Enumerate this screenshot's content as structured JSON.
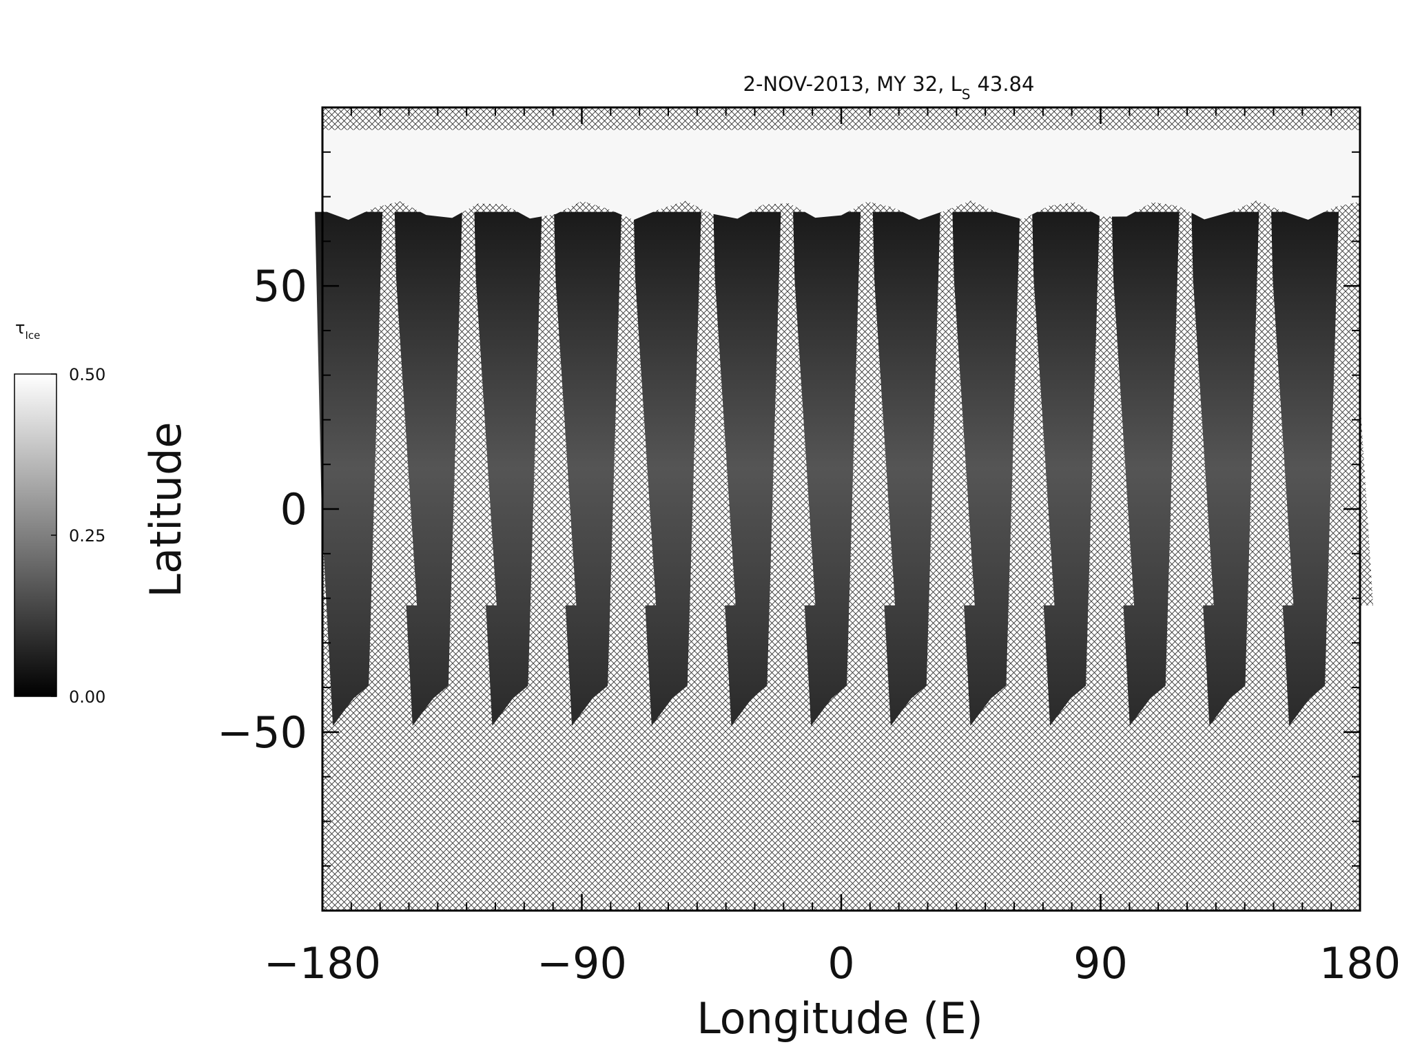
{
  "chart_data": {
    "type": "map",
    "title": {
      "text": "2-NOV-2013, MY 32,  L",
      "subscript": "S",
      "suffix": "43.84"
    },
    "x_label": "Longitude (E)",
    "y_label": "Latitude",
    "xlim": [
      -180,
      180
    ],
    "ylim": [
      -90,
      90
    ],
    "xticks": [
      {
        "value": -180,
        "label": "−180"
      },
      {
        "value": -90,
        "label": "−90"
      },
      0,
      90,
      180
    ],
    "yticks": [
      {
        "value": -50,
        "label": "−50"
      },
      0,
      50
    ],
    "xminorticks": [
      -170,
      -160,
      -150,
      -140,
      -130,
      -120,
      -110,
      -100,
      -80,
      -70,
      -60,
      -50,
      -40,
      -30,
      -20,
      -10,
      10,
      20,
      30,
      40,
      50,
      60,
      70,
      80,
      100,
      110,
      120,
      130,
      140,
      150,
      160,
      170
    ],
    "yminorticks": [
      -80,
      -70,
      -60,
      -40,
      -30,
      -20,
      -10,
      10,
      20,
      30,
      40,
      60,
      70,
      80
    ],
    "colorbar": {
      "label": "τ",
      "label_subscript": "Ice",
      "lim": [
        0,
        0.5
      ],
      "ticks": [
        {
          "value": 0,
          "label": "0.00"
        },
        {
          "value": 0.25,
          "label": "0.25"
        },
        {
          "value": 0.5,
          "label": "0.50"
        }
      ],
      "colors": [
        "#000000",
        "#ffffff"
      ]
    }
  }
}
